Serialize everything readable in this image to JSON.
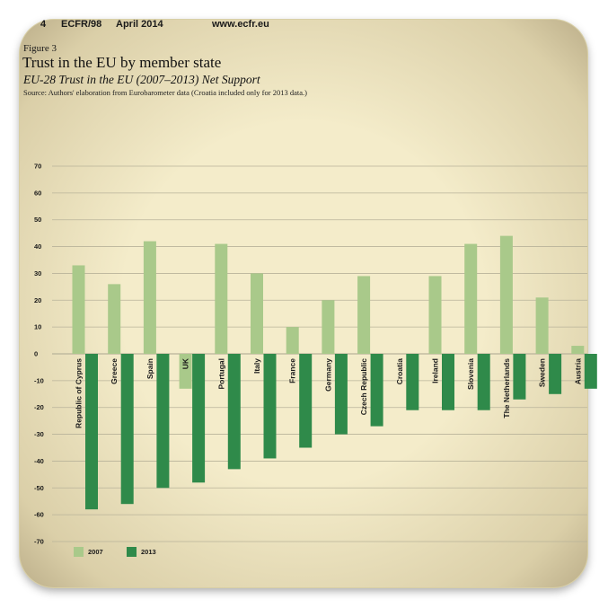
{
  "header": {
    "page_number": "4",
    "publication": "ECFR/98",
    "date": "April 2014",
    "website": "www.ecfr.eu"
  },
  "figure_label": "Figure 3",
  "colors": {
    "series_2007": "#a9c98a",
    "series_2013": "#2f8a4a",
    "grid": "#b9b39a",
    "background": "#f4ecca"
  },
  "chart_data": {
    "type": "bar",
    "title": "Trust in the EU by member state",
    "subtitle": "EU-28 Trust in the EU (2007–2013) Net Support",
    "source": "Source: Authors' elaboration from Eurobarometer data (Croatia included only for 2013 data.)",
    "xlabel": "",
    "ylabel": "",
    "ylim": [
      -70,
      70
    ],
    "yticks": [
      70,
      60,
      50,
      40,
      30,
      20,
      10,
      0,
      -10,
      -20,
      -30,
      -40,
      -50,
      -60,
      -70
    ],
    "grid": true,
    "legend_position": "bottom-left",
    "categories": [
      "Republic of Cyprus",
      "Greece",
      "Spain",
      "UK",
      "Portugal",
      "Italy",
      "France",
      "Germany",
      "Czech Republic",
      "Croatia",
      "Ireland",
      "Slovenia",
      "The Netherlands",
      "Sweden",
      "Austria"
    ],
    "series": [
      {
        "name": "2007",
        "values": [
          33,
          26,
          42,
          -13,
          41,
          30,
          10,
          20,
          29,
          null,
          29,
          41,
          44,
          21,
          3
        ]
      },
      {
        "name": "2013",
        "values": [
          -58,
          -56,
          -50,
          -48,
          -43,
          -39,
          -35,
          -30,
          -27,
          -21,
          -21,
          -21,
          -17,
          -15,
          -13
        ]
      }
    ]
  }
}
